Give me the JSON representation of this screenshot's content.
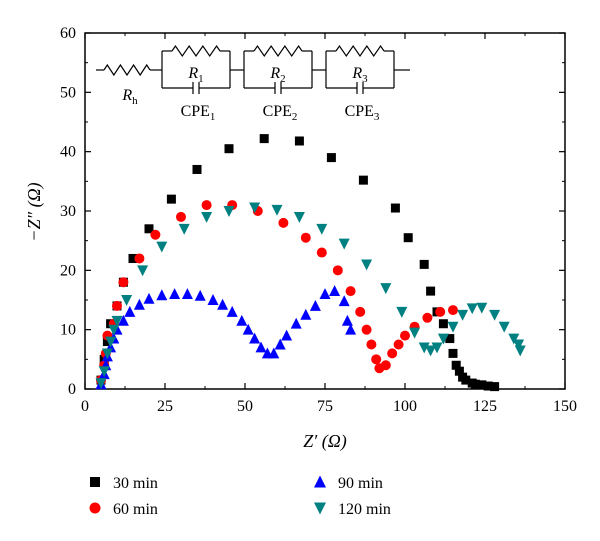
{
  "chart_data": {
    "type": "scatter",
    "xlabel": "Z′ (Ω)",
    "ylabel": "−Z″ (Ω)",
    "xlim": [
      0,
      150
    ],
    "ylim": [
      0,
      60
    ],
    "xticks": [
      0,
      25,
      50,
      75,
      100,
      125,
      150
    ],
    "yticks": [
      0,
      10,
      20,
      30,
      40,
      50,
      60
    ],
    "grid": false,
    "legend_position": "bottom",
    "inset": {
      "type": "equivalent-circuit",
      "labels": {
        "rh": "R",
        "rh_sub": "h",
        "r1": "R",
        "r1_sub": "1",
        "r2": "R",
        "r2_sub": "2",
        "r3": "R",
        "r3_sub": "3",
        "cpe1": "CPE",
        "cpe1_sub": "1",
        "cpe2": "CPE",
        "cpe2_sub": "2",
        "cpe3": "CPE",
        "cpe3_sub": "3"
      }
    },
    "series": [
      {
        "name": "30 min",
        "marker": "square",
        "color": "#000000",
        "points": [
          [
            5,
            1.5
          ],
          [
            6,
            5
          ],
          [
            7,
            8
          ],
          [
            8,
            11
          ],
          [
            10,
            14
          ],
          [
            12,
            18
          ],
          [
            15,
            22
          ],
          [
            20,
            27
          ],
          [
            27,
            32
          ],
          [
            35,
            37
          ],
          [
            45,
            40.5
          ],
          [
            56,
            42.2
          ],
          [
            67,
            41.8
          ],
          [
            77,
            39
          ],
          [
            87,
            35.2
          ],
          [
            97,
            30.5
          ],
          [
            101,
            25.5
          ],
          [
            106,
            21
          ],
          [
            108,
            16.5
          ],
          [
            110,
            13
          ],
          [
            112,
            11
          ],
          [
            114,
            8.5
          ],
          [
            115,
            6
          ],
          [
            116,
            4
          ],
          [
            117,
            3
          ],
          [
            118,
            2
          ],
          [
            119,
            1.5
          ],
          [
            121,
            1
          ],
          [
            122,
            0.8
          ],
          [
            124,
            0.7
          ],
          [
            126,
            0.5
          ],
          [
            128,
            0.4
          ]
        ]
      },
      {
        "name": "60 min",
        "marker": "circle",
        "color": "#ff0000",
        "points": [
          [
            5,
            1.5
          ],
          [
            6,
            4
          ],
          [
            6.5,
            6
          ],
          [
            7,
            9
          ],
          [
            9,
            11
          ],
          [
            10,
            14
          ],
          [
            12,
            18
          ],
          [
            17,
            22
          ],
          [
            22,
            26
          ],
          [
            30,
            29
          ],
          [
            38,
            31
          ],
          [
            46,
            31
          ],
          [
            54,
            30
          ],
          [
            62,
            28
          ],
          [
            69,
            25.5
          ],
          [
            74,
            23
          ],
          [
            79,
            20
          ],
          [
            83,
            16.5
          ],
          [
            86,
            13
          ],
          [
            88,
            10
          ],
          [
            89.5,
            7.5
          ],
          [
            91,
            5
          ],
          [
            92,
            3.5
          ],
          [
            94,
            4
          ],
          [
            96,
            6
          ],
          [
            98,
            7.5
          ],
          [
            100,
            9
          ],
          [
            103,
            10.5
          ],
          [
            107,
            12
          ],
          [
            111,
            13
          ],
          [
            115,
            13.3
          ]
        ]
      },
      {
        "name": "90 min",
        "marker": "triangle-up",
        "color": "#0000ff",
        "points": [
          [
            5,
            0.8
          ],
          [
            6,
            2.5
          ],
          [
            6.5,
            4
          ],
          [
            7,
            5.5
          ],
          [
            8,
            7
          ],
          [
            9,
            8.5
          ],
          [
            10,
            10
          ],
          [
            12,
            11.5
          ],
          [
            14,
            13
          ],
          [
            17,
            14.2
          ],
          [
            20,
            15.2
          ],
          [
            24,
            15.8
          ],
          [
            28,
            16
          ],
          [
            32,
            16
          ],
          [
            36,
            15.7
          ],
          [
            40,
            15
          ],
          [
            43,
            14.2
          ],
          [
            46,
            13
          ],
          [
            49,
            11.5
          ],
          [
            51,
            10
          ],
          [
            53,
            8.5
          ],
          [
            55,
            7
          ],
          [
            57,
            6
          ],
          [
            59,
            6
          ],
          [
            61,
            7.5
          ],
          [
            63,
            9
          ],
          [
            66,
            11
          ],
          [
            69,
            12.5
          ],
          [
            72,
            14
          ],
          [
            75,
            16
          ],
          [
            78,
            16.5
          ],
          [
            81,
            14.8
          ],
          [
            82,
            11.5
          ],
          [
            83,
            10
          ]
        ]
      },
      {
        "name": "120 min",
        "marker": "triangle-down",
        "color": "#008080",
        "points": [
          [
            5,
            1
          ],
          [
            6,
            3
          ],
          [
            7,
            6
          ],
          [
            8,
            8
          ],
          [
            9,
            10
          ],
          [
            10,
            11.5
          ],
          [
            13,
            15
          ],
          [
            18,
            20
          ],
          [
            24,
            24
          ],
          [
            31,
            27
          ],
          [
            38,
            29
          ],
          [
            45,
            30
          ],
          [
            53,
            30.6
          ],
          [
            60,
            30.2
          ],
          [
            67,
            29
          ],
          [
            74,
            27
          ],
          [
            81,
            24.5
          ],
          [
            88,
            21
          ],
          [
            94,
            17
          ],
          [
            99,
            13
          ],
          [
            103,
            9.5
          ],
          [
            106,
            7
          ],
          [
            108,
            6.5
          ],
          [
            110,
            7
          ],
          [
            112,
            8.5
          ],
          [
            115,
            10.5
          ],
          [
            118,
            12.5
          ],
          [
            121,
            13.6
          ],
          [
            124,
            13.7
          ],
          [
            128,
            12.5
          ],
          [
            131,
            10.5
          ],
          [
            134,
            8.5
          ],
          [
            135.5,
            7.5
          ],
          [
            136,
            6.5
          ]
        ]
      }
    ]
  }
}
